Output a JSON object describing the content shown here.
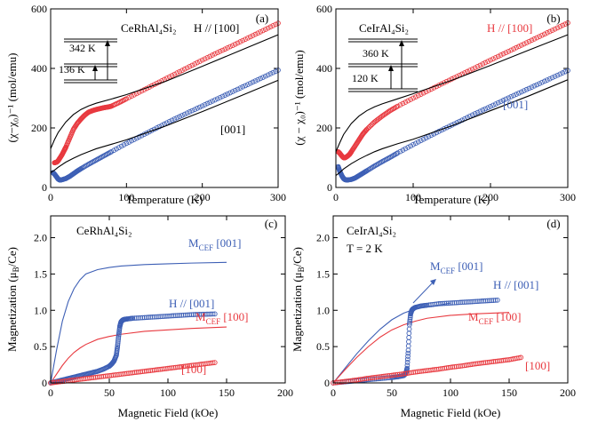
{
  "chart_data": [
    {
      "id": "a",
      "panel_label": "(a)",
      "type": "scatter",
      "compound": "CeRhAl₄Si₂",
      "xlabel": "Temperature (K)",
      "ylabel": "(χ−χ₀)⁻¹ (mol/emu)",
      "xlim": [
        0,
        300
      ],
      "ylim": [
        0,
        600
      ],
      "xticks": [
        "0",
        "100",
        "200",
        "300"
      ],
      "yticks": [
        "0",
        "200",
        "400",
        "600"
      ],
      "series": [
        {
          "name": "H // [100]",
          "label": "H // [100]",
          "color": "#e8393f",
          "marker": "circle",
          "x": [
            5,
            8,
            10,
            12,
            15,
            18,
            20,
            25,
            30,
            35,
            40,
            45,
            50,
            55,
            60,
            65,
            70,
            75,
            80,
            90,
            100,
            120,
            140,
            160,
            180,
            200,
            220,
            240,
            260,
            280,
            300
          ],
          "y": [
            83,
            85,
            90,
            98,
            110,
            125,
            135,
            165,
            195,
            215,
            230,
            243,
            253,
            258,
            262,
            265,
            268,
            270,
            273,
            285,
            298,
            324,
            350,
            376,
            402,
            428,
            453,
            477,
            502,
            527,
            552
          ]
        },
        {
          "name": "[001]",
          "label": "[001]",
          "color": "#3d5fb5",
          "marker": "circle",
          "x": [
            3,
            5,
            8,
            10,
            12,
            15,
            20,
            25,
            30,
            35,
            40,
            50,
            60,
            70,
            80,
            100,
            120,
            140,
            160,
            180,
            200,
            220,
            240,
            260,
            280,
            300
          ],
          "y": [
            50,
            45,
            35,
            28,
            25,
            26,
            30,
            37,
            46,
            55,
            63,
            78,
            92,
            106,
            120,
            148,
            174,
            200,
            226,
            250,
            274,
            298,
            322,
            346,
            370,
            394
          ]
        },
        {
          "name": "CEF fit [100]",
          "color": "#000",
          "marker": "none",
          "x": [
            0,
            5,
            10,
            20,
            30,
            40,
            50,
            60,
            80,
            100,
            150,
            200,
            250,
            300
          ],
          "y": [
            130,
            160,
            185,
            220,
            245,
            262,
            274,
            283,
            297,
            312,
            355,
            407,
            460,
            513
          ]
        },
        {
          "name": "CEF fit [001]",
          "color": "#000",
          "marker": "none",
          "x": [
            0,
            5,
            10,
            20,
            30,
            40,
            50,
            60,
            80,
            100,
            150,
            200,
            250,
            300
          ],
          "y": [
            50,
            58,
            68,
            85,
            98,
            110,
            120,
            130,
            145,
            160,
            205,
            255,
            307,
            360
          ]
        }
      ],
      "inset": {
        "levels": [
          "342 K",
          "136 K"
        ]
      },
      "annotations": [
        "[001]"
      ]
    },
    {
      "id": "b",
      "panel_label": "(b)",
      "type": "scatter",
      "compound": "CeIrAl₄Si₂",
      "xlabel": "Temperature (K)",
      "ylabel": "(χ − χ₀)⁻¹ (mol/emu)",
      "xlim": [
        0,
        300
      ],
      "ylim": [
        0,
        600
      ],
      "xticks": [
        "0",
        "100",
        "200",
        "300"
      ],
      "yticks": [
        "0",
        "200",
        "400",
        "600"
      ],
      "series": [
        {
          "name": "H // [100]",
          "label": "H // [100]",
          "color": "#e8393f",
          "marker": "circle",
          "x": [
            3,
            5,
            8,
            10,
            12,
            15,
            18,
            20,
            25,
            30,
            35,
            40,
            50,
            60,
            70,
            80,
            100,
            120,
            140,
            160,
            180,
            200,
            220,
            240,
            260,
            280,
            300
          ],
          "y": [
            120,
            115,
            105,
            100,
            100,
            105,
            112,
            120,
            140,
            160,
            180,
            195,
            220,
            240,
            258,
            273,
            300,
            326,
            352,
            377,
            402,
            428,
            453,
            478,
            503,
            528,
            553
          ]
        },
        {
          "name": "[001]",
          "label": "[001]",
          "color": "#3d5fb5",
          "marker": "circle",
          "x": [
            3,
            5,
            8,
            10,
            12,
            15,
            20,
            25,
            30,
            35,
            40,
            50,
            60,
            70,
            80,
            100,
            120,
            140,
            160,
            180,
            200,
            220,
            240,
            260,
            280,
            300
          ],
          "y": [
            70,
            55,
            38,
            30,
            26,
            25,
            27,
            32,
            40,
            48,
            56,
            72,
            87,
            101,
            116,
            144,
            171,
            197,
            222,
            248,
            272,
            297,
            321,
            345,
            369,
            393
          ]
        },
        {
          "name": "CEF fit [100]",
          "color": "#000",
          "marker": "none",
          "x": [
            0,
            5,
            10,
            20,
            30,
            40,
            50,
            60,
            80,
            100,
            150,
            200,
            250,
            300
          ],
          "y": [
            120,
            150,
            178,
            215,
            240,
            258,
            271,
            281,
            298,
            315,
            360,
            410,
            462,
            513
          ]
        },
        {
          "name": "CEF fit [001]",
          "color": "#000",
          "marker": "none",
          "x": [
            0,
            5,
            10,
            20,
            30,
            40,
            50,
            60,
            80,
            100,
            150,
            200,
            250,
            300
          ],
          "y": [
            40,
            50,
            62,
            80,
            95,
            108,
            120,
            130,
            147,
            162,
            207,
            258,
            308,
            362
          ]
        }
      ],
      "inset": {
        "levels": [
          "360 K",
          "120 K"
        ]
      },
      "annotations": [
        "[001]"
      ]
    },
    {
      "id": "c",
      "panel_label": "(c)",
      "type": "scatter",
      "compound": "CeRhAl₄Si₂",
      "xlabel": "Magnetic Field (kOe)",
      "ylabel": "Magnetization (μ_B/Ce)",
      "xlim": [
        0,
        200
      ],
      "ylim": [
        0,
        2.3
      ],
      "xticks": [
        "0",
        "50",
        "100",
        "150",
        "200"
      ],
      "yticks": [
        "0",
        "0.5",
        "1.0",
        "1.5",
        "2.0"
      ],
      "series": [
        {
          "name": "M_CEF [001]",
          "label": "M",
          "sub": "CEF",
          "suffix": " [001]",
          "color": "#3d5fb5",
          "marker": "none",
          "x": [
            0,
            5,
            10,
            15,
            20,
            25,
            30,
            40,
            50,
            60,
            80,
            100,
            120,
            150
          ],
          "y": [
            0,
            0.45,
            0.85,
            1.12,
            1.3,
            1.42,
            1.5,
            1.56,
            1.59,
            1.61,
            1.63,
            1.64,
            1.65,
            1.66
          ]
        },
        {
          "name": "M_CEF [100]",
          "label": "M",
          "sub": "CEF",
          "suffix": " [100]",
          "color": "#e8393f",
          "marker": "none",
          "x": [
            0,
            5,
            10,
            15,
            20,
            25,
            30,
            40,
            50,
            60,
            80,
            100,
            120,
            150
          ],
          "y": [
            0,
            0.12,
            0.24,
            0.34,
            0.42,
            0.48,
            0.53,
            0.6,
            0.64,
            0.67,
            0.71,
            0.73,
            0.75,
            0.77
          ]
        },
        {
          "name": "H // [001]",
          "label": "H // [001]",
          "color": "#3d5fb5",
          "marker": "circle",
          "x": [
            0,
            5,
            10,
            15,
            20,
            25,
            30,
            35,
            40,
            45,
            50,
            52,
            54,
            56,
            57,
            58,
            59,
            60,
            61,
            62,
            63,
            65,
            70,
            80,
            90,
            100,
            110,
            120,
            130,
            140
          ],
          "y": [
            0,
            0.02,
            0.04,
            0.06,
            0.08,
            0.1,
            0.12,
            0.14,
            0.16,
            0.19,
            0.23,
            0.26,
            0.3,
            0.38,
            0.5,
            0.65,
            0.78,
            0.84,
            0.86,
            0.87,
            0.875,
            0.88,
            0.89,
            0.9,
            0.91,
            0.92,
            0.93,
            0.94,
            0.945,
            0.95
          ]
        },
        {
          "name": "[100]",
          "label": "[100]",
          "color": "#e8393f",
          "marker": "circle",
          "x": [
            0,
            10,
            20,
            30,
            40,
            50,
            60,
            70,
            80,
            90,
            100,
            110,
            120,
            130,
            140
          ],
          "y": [
            0,
            0.02,
            0.04,
            0.06,
            0.08,
            0.1,
            0.12,
            0.14,
            0.16,
            0.18,
            0.2,
            0.22,
            0.24,
            0.26,
            0.28
          ]
        }
      ]
    },
    {
      "id": "d",
      "panel_label": "(d)",
      "type": "scatter",
      "compound": "CeIrAl₄Si₂",
      "condition": "T = 2 K",
      "xlabel": "Magnetic Field (kOe)",
      "ylabel": "Magnetization (μ_B/Ce)",
      "xlim": [
        0,
        200
      ],
      "ylim": [
        0,
        2.3
      ],
      "xticks": [
        "0",
        "50",
        "100",
        "150",
        "200"
      ],
      "yticks": [
        "0",
        "0.5",
        "1.0",
        "1.5",
        "2.0"
      ],
      "series": [
        {
          "name": "M_CEF [001]",
          "label": "M",
          "sub": "CEF",
          "suffix": " [001]",
          "color": "#3d5fb5",
          "marker": "none",
          "x": [
            0,
            10,
            20,
            30,
            40,
            50,
            60,
            70,
            80,
            90,
            100
          ],
          "y": [
            0,
            0.2,
            0.4,
            0.58,
            0.74,
            0.87,
            0.96,
            1.02,
            1.05,
            1.07,
            1.1
          ]
        },
        {
          "name": "M_CEF [100]",
          "label": "M",
          "sub": "CEF",
          "suffix": " [100]",
          "color": "#e8393f",
          "marker": "none",
          "x": [
            0,
            10,
            20,
            30,
            40,
            50,
            60,
            70,
            80,
            100,
            120,
            150
          ],
          "y": [
            0,
            0.18,
            0.35,
            0.5,
            0.63,
            0.73,
            0.8,
            0.85,
            0.89,
            0.93,
            0.95,
            0.97
          ]
        },
        {
          "name": "H // [001]",
          "label": "H // [001]",
          "color": "#3d5fb5",
          "marker": "circle",
          "x": [
            0,
            10,
            20,
            30,
            40,
            50,
            55,
            60,
            62,
            63,
            64,
            65,
            66,
            67,
            68,
            70,
            75,
            80,
            90,
            100,
            110,
            120,
            130,
            140
          ],
          "y": [
            0,
            0.015,
            0.03,
            0.045,
            0.06,
            0.075,
            0.085,
            0.1,
            0.13,
            0.2,
            0.45,
            0.8,
            0.95,
            1.0,
            1.02,
            1.04,
            1.06,
            1.07,
            1.09,
            1.1,
            1.11,
            1.12,
            1.13,
            1.14
          ]
        },
        {
          "name": "[100]",
          "label": "[100]",
          "color": "#e8393f",
          "marker": "circle",
          "x": [
            0,
            10,
            20,
            30,
            40,
            50,
            60,
            70,
            80,
            90,
            100,
            110,
            120,
            130,
            140,
            150,
            160
          ],
          "y": [
            0,
            0.02,
            0.04,
            0.065,
            0.085,
            0.105,
            0.125,
            0.15,
            0.17,
            0.19,
            0.215,
            0.235,
            0.26,
            0.28,
            0.3,
            0.32,
            0.35
          ]
        }
      ]
    }
  ]
}
